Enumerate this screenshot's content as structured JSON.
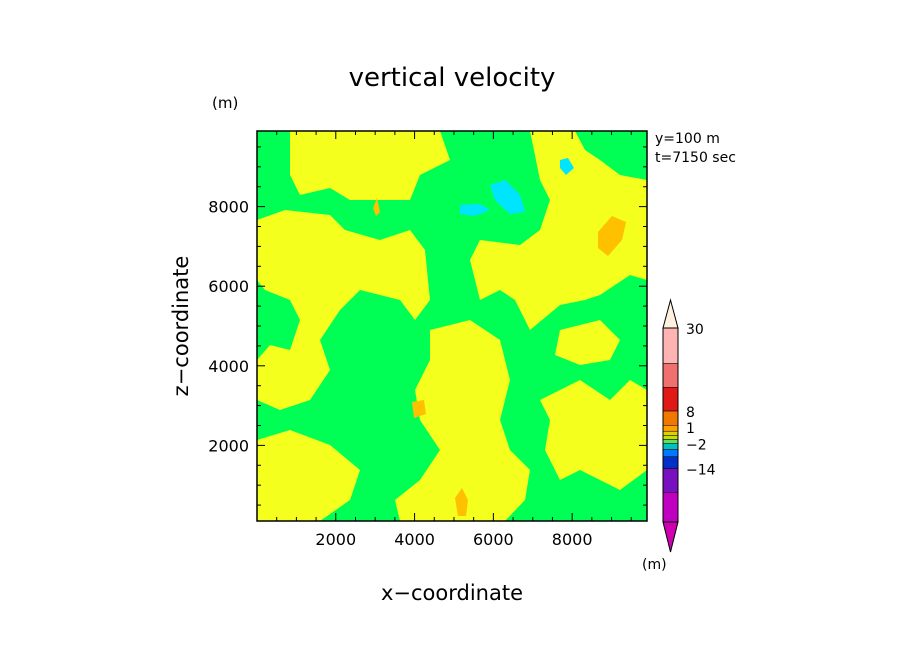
{
  "chart_data": {
    "type": "heatmap",
    "title": "vertical velocity",
    "xlabel": "x−coordinate",
    "ylabel": "z−coordinate",
    "x_unit": "(m)",
    "y_unit": "(m)",
    "info_line_1": "y=100 m",
    "info_line_2": "t=7150 sec",
    "xlim": [
      0,
      9900
    ],
    "ylim": [
      100,
      9900
    ],
    "x_ticks": [
      "2000",
      "4000",
      "6000",
      "8000"
    ],
    "y_ticks": [
      "2000",
      "4000",
      "6000",
      "8000"
    ],
    "x_tick_values": [
      2000,
      4000,
      6000,
      8000
    ],
    "y_tick_values": [
      2000,
      4000,
      6000,
      8000
    ],
    "colorbar": {
      "unit": "(m)",
      "labels": [
        "30",
        "8",
        "1",
        "−2",
        "−14"
      ],
      "colors_top_to_bottom": [
        "#ffb4b4",
        "#f07070",
        "#e01818",
        "#f07800",
        "#ffa000",
        "#e0d000",
        "#c0e000",
        "#60e060",
        "#00c0c0",
        "#0078ff",
        "#0030c8",
        "#7810c0",
        "#c000c0"
      ],
      "top_tip_color": "#fff0e0",
      "bottom_tip_color": "#d000b0"
    },
    "field_colors": {
      "background": "#00ff55",
      "positive": "#f4ff1e",
      "strong_positive": "#ffc000",
      "negative": "#00e5ff"
    }
  }
}
